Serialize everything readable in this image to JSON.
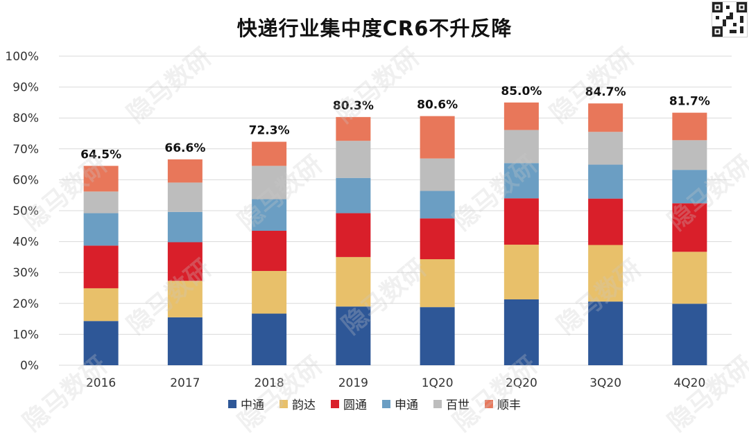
{
  "chart_data": {
    "type": "bar",
    "stacked": true,
    "title": "快递行业集中度CR6不升反降",
    "categories": [
      "2016",
      "2017",
      "2018",
      "2019",
      "1Q20",
      "2Q20",
      "3Q20",
      "4Q20"
    ],
    "series": [
      {
        "name": "中通",
        "values": [
          14.3,
          15.5,
          16.7,
          19.0,
          18.8,
          21.3,
          20.6,
          19.9
        ]
      },
      {
        "name": "韵达",
        "values": [
          10.6,
          11.8,
          13.8,
          16.0,
          15.5,
          17.7,
          18.3,
          16.8
        ]
      },
      {
        "name": "圆通",
        "values": [
          13.8,
          12.5,
          13.0,
          14.2,
          13.2,
          15.0,
          15.0,
          15.7
        ]
      },
      {
        "name": "申通",
        "values": [
          10.5,
          9.8,
          10.2,
          11.4,
          8.9,
          11.4,
          11.0,
          10.8
        ]
      },
      {
        "name": "百世",
        "values": [
          7.0,
          9.5,
          10.8,
          12.0,
          10.5,
          10.7,
          10.6,
          9.6
        ]
      },
      {
        "name": "顺丰",
        "values": [
          8.3,
          7.5,
          7.8,
          7.7,
          13.7,
          8.9,
          9.2,
          8.9
        ]
      }
    ],
    "totals_labels": [
      "64.5%",
      "66.6%",
      "72.3%",
      "80.3%",
      "80.6%",
      "85.0%",
      "84.7%",
      "81.7%"
    ],
    "y_ticks": [
      "0%",
      "10%",
      "20%",
      "30%",
      "40%",
      "50%",
      "60%",
      "70%",
      "80%",
      "90%",
      "100%"
    ],
    "ylim": [
      0,
      100
    ],
    "grid": true,
    "legend_position": "bottom",
    "colors": [
      "#2E5797",
      "#E8C06A",
      "#D91F2A",
      "#6B9EC3",
      "#BDBDBD",
      "#E8775A"
    ]
  },
  "watermark": {
    "text": "隐马数研"
  },
  "qr": {
    "icon": "qr-code-icon"
  }
}
